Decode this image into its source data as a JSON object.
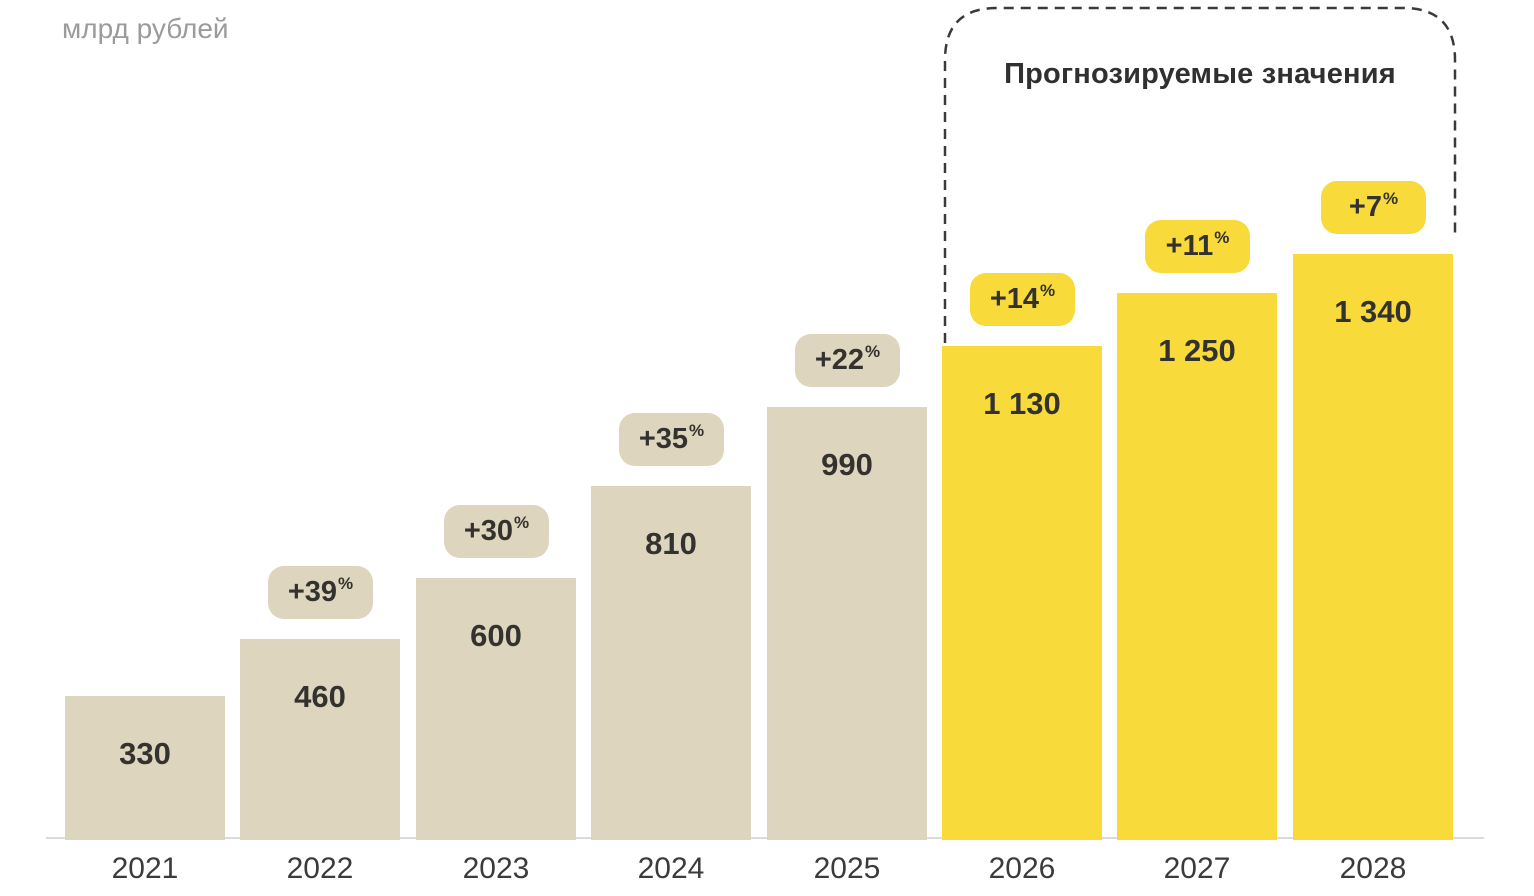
{
  "header": {
    "unit_label": "млрд рублей"
  },
  "forecast_region": {
    "title": "Прогнозируемые значения"
  },
  "chart_data": {
    "type": "bar",
    "title": "",
    "xlabel": "",
    "ylabel": "млрд рублей",
    "unit": "млрд рублей",
    "categories": [
      "2021",
      "2022",
      "2023",
      "2024",
      "2025",
      "2026",
      "2027",
      "2028"
    ],
    "values": [
      330,
      460,
      600,
      810,
      990,
      1130,
      1250,
      1340
    ],
    "value_labels": [
      "330",
      "460",
      "600",
      "810",
      "990",
      "1 130",
      "1 250",
      "1 340"
    ],
    "growth_labels": [
      "",
      "+39",
      "+30",
      "+35",
      "+22",
      "+14",
      "+11",
      "+7"
    ],
    "growth_unit": "%",
    "forecast_flags": [
      false,
      false,
      false,
      false,
      false,
      true,
      true,
      true
    ],
    "forecast_region_label": "Прогнозируемые значения",
    "ylim": [
      0,
      1400
    ],
    "grid": false,
    "legend": false,
    "colors": {
      "actual_bar": "#DED5BE",
      "forecast_bar": "#F8DB3B",
      "value_text": "#33322E",
      "year_text": "#3B3B3B",
      "unit_text": "#9B9B9B",
      "axis_line": "#DBDBDB",
      "outline": "#3A3A3A"
    }
  }
}
